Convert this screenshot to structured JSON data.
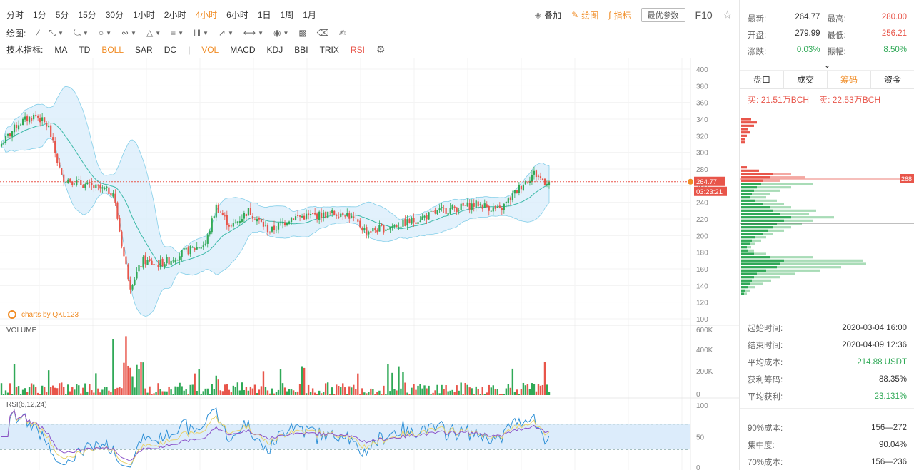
{
  "toolbar": {
    "timeframes": [
      "分时",
      "1分",
      "5分",
      "15分",
      "30分",
      "1小时",
      "2小时",
      "4小时",
      "6小时",
      "1日",
      "1周",
      "1月"
    ],
    "active_timeframe": "4小时",
    "overlay_label": "叠加",
    "draw_label": "绘图",
    "indicator_label": "指标",
    "best_params_label": "最优参数",
    "f10_label": "F10"
  },
  "draw_bar": {
    "label": "绘图:"
  },
  "indicator_bar": {
    "label": "技术指标:",
    "main": [
      "MA",
      "TD",
      "BOLL",
      "SAR",
      "DC"
    ],
    "active_main": "BOLL",
    "sub": [
      "VOL",
      "MACD",
      "KDJ",
      "BBI",
      "TRIX",
      "RSI"
    ],
    "active_sub": [
      "VOL",
      "RSI"
    ]
  },
  "chart_data": {
    "type": "candlestick",
    "price_axis": {
      "ticks": [
        "400",
        "380",
        "360",
        "340",
        "320",
        "300",
        "280",
        "260",
        "240",
        "220",
        "200",
        "180",
        "160",
        "140",
        "120",
        "100"
      ],
      "ylim": [
        100,
        400
      ]
    },
    "last_price_label": "264.77",
    "countdown_label": "03:23:21",
    "watermark": "charts by QKL123",
    "volume": {
      "title": "VOLUME",
      "ticks": [
        "600K",
        "400K",
        "200K",
        "0"
      ]
    },
    "rsi": {
      "title": "RSI(6,12,24)",
      "ticks": [
        "100",
        "50",
        "0"
      ],
      "band": [
        30,
        70
      ]
    },
    "colors": {
      "up": "#30a957",
      "down": "#e8554a",
      "boll": "#57bde0",
      "boll_fill": "#d8ecfb"
    },
    "key_points": [
      {
        "i": 0,
        "price": 310
      },
      {
        "i": 8,
        "price": 335
      },
      {
        "i": 16,
        "price": 345
      },
      {
        "i": 22,
        "price": 330
      },
      {
        "i": 28,
        "price": 270
      },
      {
        "i": 40,
        "price": 260
      },
      {
        "i": 52,
        "price": 252
      },
      {
        "i": 57,
        "price": 175
      },
      {
        "i": 60,
        "price": 140
      },
      {
        "i": 66,
        "price": 170
      },
      {
        "i": 72,
        "price": 165
      },
      {
        "i": 78,
        "price": 170
      },
      {
        "i": 85,
        "price": 180
      },
      {
        "i": 95,
        "price": 190
      },
      {
        "i": 100,
        "price": 235
      },
      {
        "i": 107,
        "price": 210
      },
      {
        "i": 115,
        "price": 230
      },
      {
        "i": 125,
        "price": 205
      },
      {
        "i": 135,
        "price": 222
      },
      {
        "i": 150,
        "price": 225
      },
      {
        "i": 160,
        "price": 228
      },
      {
        "i": 170,
        "price": 205
      },
      {
        "i": 180,
        "price": 210
      },
      {
        "i": 192,
        "price": 218
      },
      {
        "i": 205,
        "price": 230
      },
      {
        "i": 222,
        "price": 238
      },
      {
        "i": 232,
        "price": 230
      },
      {
        "i": 242,
        "price": 260
      },
      {
        "i": 248,
        "price": 275
      },
      {
        "i": 253,
        "price": 265
      }
    ]
  },
  "quote": {
    "latest_label": "最新:",
    "latest": "264.77",
    "high_label": "最高:",
    "high": "280.00",
    "open_label": "开盘:",
    "open": "279.99",
    "low_label": "最低:",
    "low": "256.21",
    "change_label": "涨跌:",
    "change": "0.03%",
    "amplitude_label": "振幅:",
    "amplitude": "8.50%"
  },
  "tabs": [
    "盘口",
    "成交",
    "筹码",
    "资金"
  ],
  "active_tab": "筹码",
  "chips": {
    "buy_label": "买:",
    "buy_value": "21.51万BCH",
    "sell_label": "卖:",
    "sell_value": "22.53万BCH",
    "price_marker": "268"
  },
  "stats": [
    {
      "label": "起始时间:",
      "value": "2020-03-04 16:00",
      "color": ""
    },
    {
      "label": "结束时间:",
      "value": "2020-04-09 12:36",
      "color": ""
    },
    {
      "label": "平均成本:",
      "value": "214.88 USDT",
      "color": "green"
    },
    {
      "label": "获利筹码:",
      "value": "88.35%",
      "color": ""
    },
    {
      "label": "平均获利:",
      "value": "23.131%",
      "color": "green"
    }
  ],
  "stats2": [
    {
      "label": "90%成本:",
      "value": "156—272"
    },
    {
      "label": "集中度:",
      "value": "90.04%"
    },
    {
      "label": "70%成本:",
      "value": "156—236"
    }
  ]
}
